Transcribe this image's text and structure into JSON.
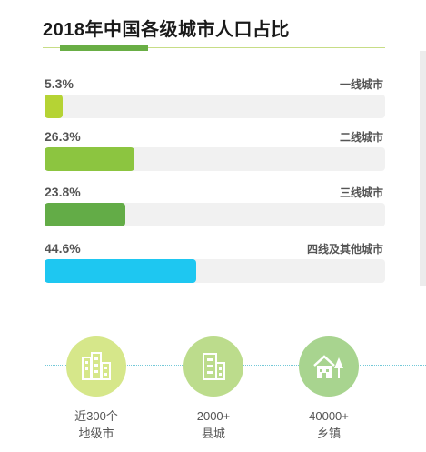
{
  "chart_data": {
    "type": "bar",
    "title": "2018年中国各级城市人口占比",
    "categories": [
      "一线城市",
      "二线城市",
      "三线城市",
      "四线及其他城市"
    ],
    "values": [
      5.3,
      26.3,
      23.8,
      44.6
    ],
    "value_labels": [
      "5.3%",
      "26.3%",
      "23.8%",
      "44.6%"
    ],
    "unit": "%",
    "orientation": "horizontal",
    "xlim": [
      0,
      100
    ],
    "colors": [
      "#b5d334",
      "#8cc540",
      "#63ac47",
      "#1ec7f1"
    ],
    "grid": false,
    "legend": "none"
  },
  "stats": [
    {
      "icon": "city-buildings-icon",
      "color": "#d6e78a",
      "line1": "近300个",
      "line2": "地级市"
    },
    {
      "icon": "office-building-icon",
      "color": "#bcdc8c",
      "line1": "2000+",
      "line2": "县城"
    },
    {
      "icon": "house-tree-icon",
      "color": "#a8d48f",
      "line1": "40000+",
      "line2": "乡镇"
    }
  ]
}
